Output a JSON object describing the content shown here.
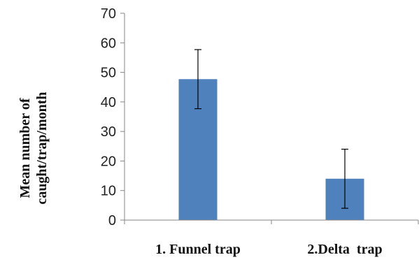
{
  "chart_data": {
    "type": "bar",
    "title": "",
    "xlabel": "",
    "ylabel_lines": [
      "Mean number of",
      "caught/trap/month"
    ],
    "categories": [
      "1. Funnel trap",
      "2.Delta  trap"
    ],
    "series": [
      {
        "values": [
          47.7,
          14.0
        ],
        "error_bars": [
          10.0,
          10.0
        ],
        "color": "#4f81bd"
      }
    ],
    "ylim": [
      0,
      70
    ],
    "yticks": [
      0,
      10,
      20,
      30,
      40,
      50,
      60,
      70
    ],
    "grid": false,
    "legend": "none"
  }
}
